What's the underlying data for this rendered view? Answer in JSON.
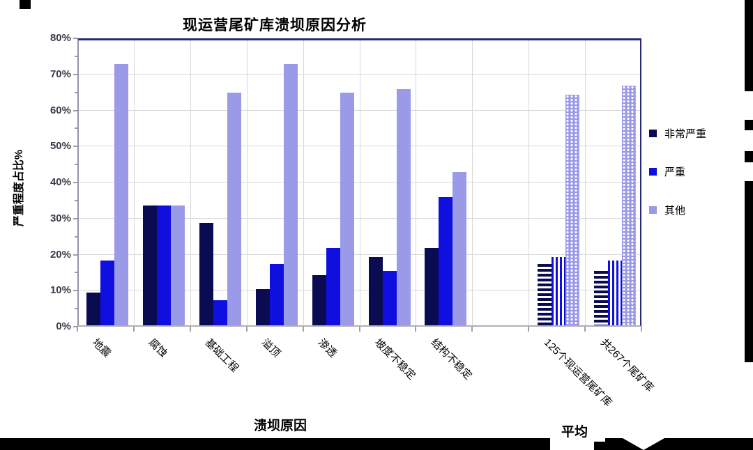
{
  "chart_data": {
    "type": "bar",
    "title": "现运营尾矿库溃坝原因分析",
    "ylabel": "严重程度占比%",
    "ylim": [
      0,
      80
    ],
    "yticks": [
      "0%",
      "10%",
      "20%",
      "30%",
      "40%",
      "50%",
      "60%",
      "70%",
      "80%"
    ],
    "grid": true,
    "legend_position": "right",
    "categories": [
      "地震",
      "腐蚀",
      "基础工程",
      "溢顶",
      "渗透",
      "坡度不稳定",
      "结构不稳定",
      "125个现运营尾矿库",
      "共267个尾矿库"
    ],
    "series": [
      {
        "name": "非常严重",
        "color": "#0b0b52",
        "pattern": "horizontal-stripes",
        "values": [
          9,
          33.3,
          28.5,
          10,
          14,
          19,
          21.5,
          17,
          15
        ]
      },
      {
        "name": "严重",
        "color": "#0f0fdf",
        "pattern": "vertical-stripes",
        "values": [
          18,
          33.3,
          7,
          17,
          21.5,
          15,
          35.5,
          19,
          18
        ]
      },
      {
        "name": "其他",
        "color": "#9a9ae8",
        "pattern": "dots",
        "values": [
          72.5,
          33.3,
          64.5,
          72.5,
          64.5,
          65.5,
          42.5,
          64,
          66.5
        ]
      }
    ],
    "pattern_from_index": 7,
    "group_axis_labels": [
      {
        "label": "溃坝原因"
      },
      {
        "label": "平均"
      }
    ]
  }
}
